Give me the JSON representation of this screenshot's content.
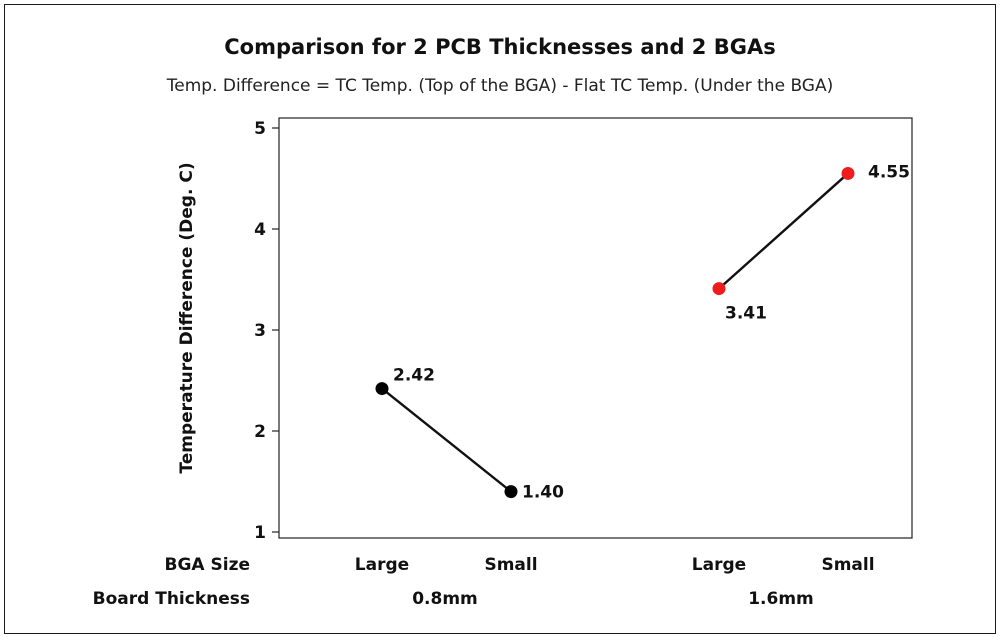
{
  "chart_data": {
    "type": "line",
    "title": "Comparison for 2 PCB Thicknesses and 2 BGAs",
    "subtitle": "Temp. Difference = TC Temp. (Top of the BGA) - Flat TC Temp. (Under the BGA)",
    "ylabel": "Temperature Difference (Deg. C)",
    "ylim": [
      1,
      5
    ],
    "yticks": [
      "1",
      "2",
      "3",
      "4",
      "5"
    ],
    "grid": false,
    "row_labels": {
      "bga_size": "BGA Size",
      "board_thickness": "Board Thickness"
    },
    "groups": [
      {
        "board_thickness": "0.8mm",
        "color": "#000000",
        "points": [
          {
            "bga_size": "Large",
            "value": 2.42,
            "label": "2.42"
          },
          {
            "bga_size": "Small",
            "value": 1.4,
            "label": "1.40"
          }
        ]
      },
      {
        "board_thickness": "1.6mm",
        "color": "#ee1c1c",
        "points": [
          {
            "bga_size": "Large",
            "value": 3.41,
            "label": "3.41"
          },
          {
            "bga_size": "Small",
            "value": 4.55,
            "label": "4.55"
          }
        ]
      }
    ]
  }
}
